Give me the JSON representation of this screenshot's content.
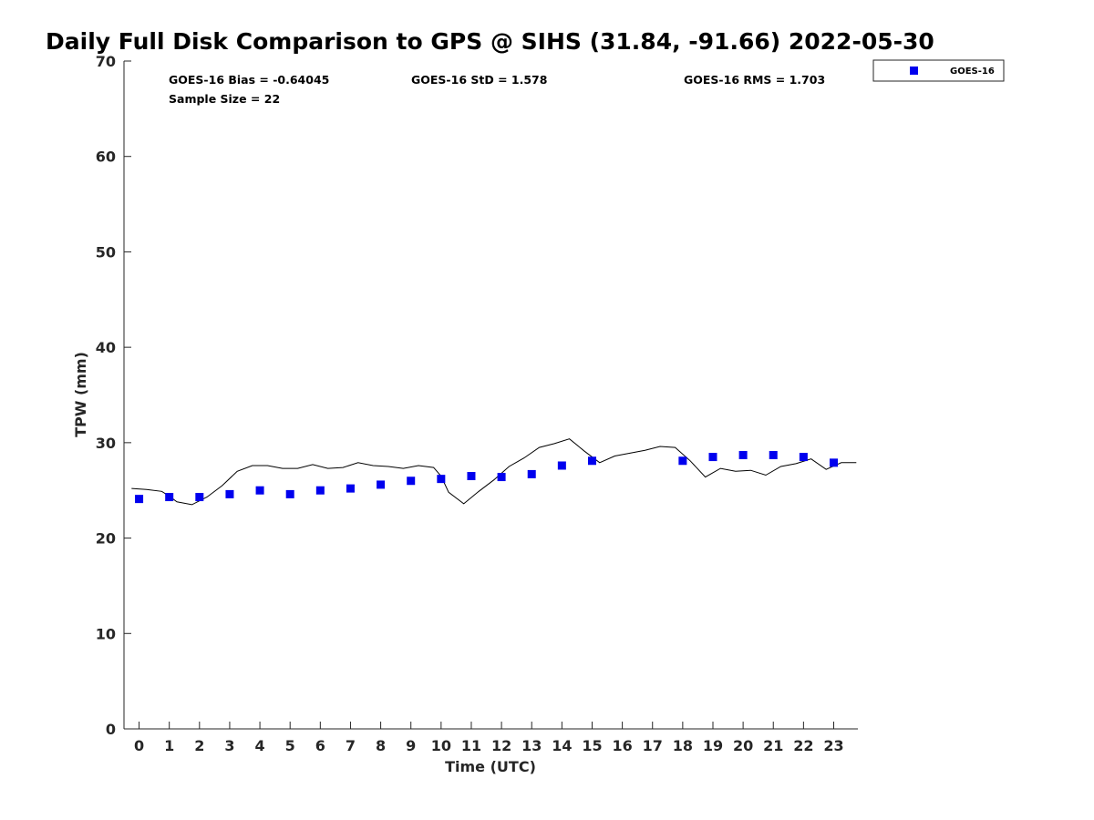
{
  "chart_data": {
    "type": "scatter",
    "title": "Daily Full Disk Comparison to GPS @ SIHS (31.84, -91.66) 2022-05-30",
    "xlabel": "Time (UTC)",
    "ylabel": "TPW (mm)",
    "xlim": [
      -0.5,
      23.8
    ],
    "ylim": [
      0,
      70
    ],
    "x_ticks": [
      "0",
      "1",
      "2",
      "3",
      "4",
      "5",
      "6",
      "7",
      "8",
      "9",
      "10",
      "11",
      "12",
      "13",
      "14",
      "15",
      "16",
      "17",
      "18",
      "19",
      "20",
      "21",
      "22",
      "23"
    ],
    "y_ticks": [
      "0",
      "10",
      "20",
      "30",
      "40",
      "50",
      "60",
      "70"
    ],
    "grid": false,
    "legend_position": "top-right",
    "stats": {
      "bias": "GOES-16 Bias = -0.64045",
      "std": "GOES-16 StD = 1.578",
      "rms": "GOES-16 RMS = 1.703",
      "sample": "Sample Size = 22"
    },
    "series": [
      {
        "name": "GOES-16",
        "kind": "markers",
        "color": "#0000ee",
        "x": [
          0,
          1,
          2,
          3,
          4,
          5,
          6,
          7,
          8,
          9,
          10,
          11,
          12,
          13,
          14,
          15,
          18,
          19,
          20,
          21,
          22,
          23
        ],
        "y": [
          24.1,
          24.3,
          24.3,
          24.6,
          25.0,
          24.6,
          25.0,
          25.2,
          25.6,
          26.0,
          26.2,
          26.5,
          26.4,
          26.7,
          27.6,
          28.1,
          28.1,
          28.5,
          28.7,
          28.7,
          28.5,
          27.9
        ]
      },
      {
        "kind": "line",
        "color": "#000000",
        "x": [
          -0.25,
          0.25,
          0.75,
          1.0,
          1.25,
          1.75,
          2.25,
          2.75,
          3.25,
          3.75,
          4.25,
          4.75,
          5.25,
          5.75,
          6.25,
          6.75,
          7.25,
          7.75,
          8.25,
          8.75,
          9.25,
          9.75,
          10.0,
          10.25,
          10.75,
          11.25,
          11.75,
          12.25,
          12.75,
          13.25,
          13.75,
          14.25,
          14.75,
          15.25,
          15.75,
          16.25,
          16.75,
          17.25,
          17.75,
          18.25,
          18.75,
          19.25,
          19.75,
          20.25,
          20.75,
          21.25,
          21.75,
          22.25,
          22.75,
          23.25,
          23.75
        ],
        "y": [
          25.2,
          25.1,
          24.9,
          24.4,
          23.8,
          23.5,
          24.3,
          25.5,
          27.0,
          27.6,
          27.6,
          27.3,
          27.3,
          27.7,
          27.3,
          27.4,
          27.9,
          27.6,
          27.5,
          27.3,
          27.6,
          27.4,
          26.5,
          24.8,
          23.6,
          24.9,
          26.1,
          27.5,
          28.4,
          29.5,
          29.9,
          30.4,
          29.1,
          27.9,
          28.6,
          28.9,
          29.2,
          29.6,
          29.5,
          28.1,
          26.4,
          27.3,
          27.0,
          27.1,
          26.6,
          27.5,
          27.8,
          28.3,
          27.2,
          27.9,
          27.9
        ]
      }
    ]
  }
}
